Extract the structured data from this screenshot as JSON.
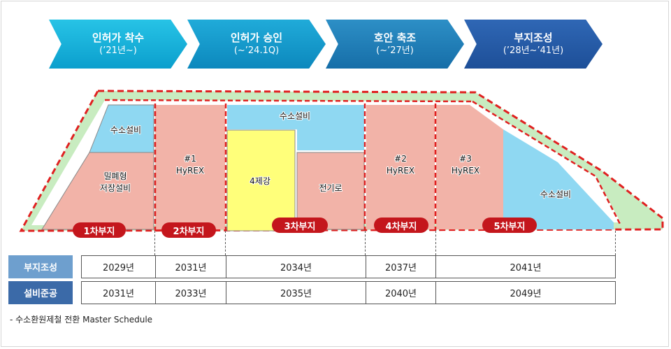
{
  "phases": [
    {
      "title": "인허가 착수",
      "sub": "(’21년~)"
    },
    {
      "title": "인허가 승인",
      "sub": "(~’24.1Q)"
    },
    {
      "title": "호안 축조",
      "sub": "(~’27년)"
    },
    {
      "title": "부지조성",
      "sub": "(’28년~’41년)"
    }
  ],
  "areas": {
    "h2_left": "수소설비",
    "storage_l1": "밀폐형",
    "storage_l2": "저장설비",
    "hyrex1_l1": "#1",
    "hyrex1_l2": "HyREX",
    "h2_top": "수소설비",
    "steel4": "4제강",
    "eaf": "전기로",
    "hyrex2_l1": "#2",
    "hyrex2_l2": "HyREX",
    "hyrex3_l1": "#3",
    "hyrex3_l2": "HyREX",
    "h2_right": "수소설비"
  },
  "sites": [
    "1차부지",
    "2차부지",
    "3차부지",
    "4차부지",
    "5차부지"
  ],
  "colors": {
    "accent_red": "#c4161c",
    "zone_pink": "#f2b3a8",
    "zone_blue": "#8fd8f2",
    "zone_yellow": "#ffff7a",
    "border_green": "#c8ecc0"
  },
  "table": {
    "row1_header": "부지조성",
    "row2_header": "설비준공",
    "row1": [
      "2029년",
      "2031년",
      "2034년",
      "2037년",
      "2041년"
    ],
    "row2": [
      "2031년",
      "2033년",
      "2035년",
      "2040년",
      "2049년"
    ]
  },
  "footnote": "- 수소환원제철 전환 Master Schedule"
}
